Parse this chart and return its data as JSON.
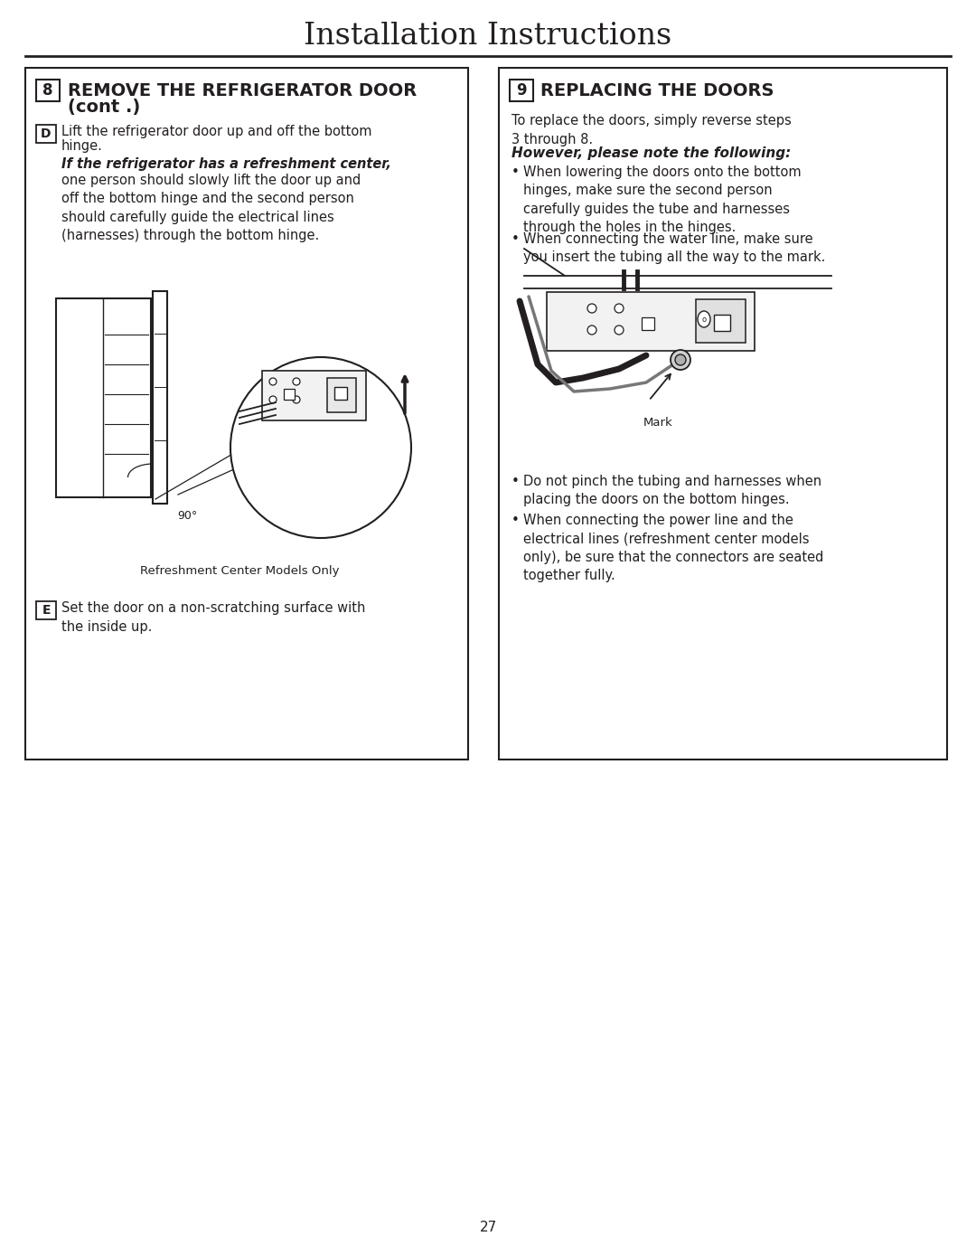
{
  "title": "Installation Instructions",
  "page_number": "27",
  "background_color": "#ffffff",
  "text_color": "#231f20",
  "left_box": {
    "step_number": "8",
    "step_title_line1": "REMOVE THE REFRIGERATOR DOOR",
    "step_title_line2": "(cont .)",
    "substep_d_text_line1": "Lift the refrigerator door up and off the bottom",
    "substep_d_text_line2": "hinge.",
    "substep_d_bold": "If the refrigerator has a refreshment center,",
    "substep_d_rest": "one person should slowly lift the door up and\noff the bottom hinge and the second person\nshould carefully guide the electrical lines\n(harnesses) through the bottom hinge.",
    "label_90": "90°",
    "caption": "Refreshment Center Models Only",
    "substep_e_text": "Set the door on a non-scratching surface with\nthe inside up."
  },
  "right_box": {
    "step_number": "9",
    "step_title": "REPLACING THE DOORS",
    "intro_text": "To replace the doors, simply reverse steps\n3 through 8.",
    "bold_italic_heading": "However, please note the following:",
    "bullet1": "When lowering the doors onto the bottom\nhinges, make sure the second person\ncarefully guides the tube and harnesses\nthrough the holes in the hinges.",
    "bullet2": "When connecting the water line, make sure\nyou insert the tubing all the way to the mark.",
    "mark_label": "Mark",
    "bullet3": "Do not pinch the tubing and harnesses when\nplacing the doors on the bottom hinges.",
    "bullet4": "When connecting the power line and the\nelectrical lines (refreshment center models\nonly), be sure that the connectors are seated\ntogether fully."
  }
}
